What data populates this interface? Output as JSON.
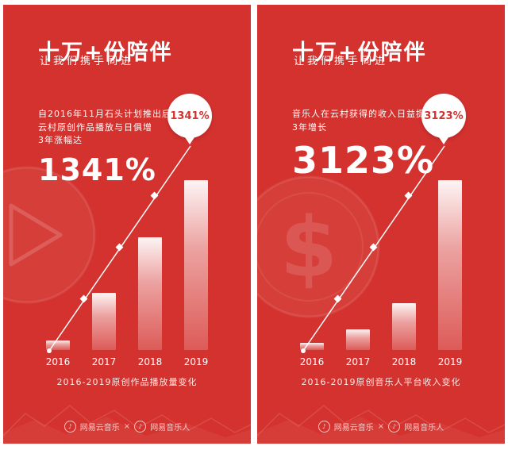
{
  "colors": {
    "panel_red": "#d4322e",
    "balloon_bg": "#ffffff",
    "balloon_text": "#d4322e",
    "text_white": "#ffffff"
  },
  "icons": {
    "logo_glyph": "♪"
  },
  "panels": [
    {
      "header": {
        "title": "十万+份陪伴",
        "subtitle": "让我们携手同进"
      },
      "description_lines": [
        "自2016年11月石头计划推出后",
        "云村原创作品播放与日俱增",
        "3年涨幅达"
      ],
      "big_number": "1341%",
      "balloon_label": "1341%",
      "caption": "2016-2019原创作品播放量变化",
      "footer": {
        "left_brand": "网易云音乐",
        "separator": "×",
        "right_brand": "网易音乐人"
      }
    },
    {
      "header": {
        "title": "十万+份陪伴",
        "subtitle": "让我们携手同进"
      },
      "description_lines": [
        "音乐人在云村获得的收入日益提升",
        "3年增长"
      ],
      "big_number": "3123%",
      "balloon_label": "3123%",
      "caption": "2016-2019原创音乐人平台收入变化",
      "footer": {
        "left_brand": "网易云音乐",
        "separator": "×",
        "right_brand": "网易音乐人"
      }
    }
  ],
  "chart_data": [
    {
      "type": "bar",
      "title": "2016-2019原创作品播放量变化",
      "categories": [
        "2016",
        "2017",
        "2018",
        "2019"
      ],
      "values": [
        5.5,
        33,
        65,
        98
      ],
      "ylim": [
        0,
        100
      ],
      "value_scale": "relative bar height %, no numeric axis shown",
      "annotation": "1341%",
      "trend_line": true,
      "legend": false
    },
    {
      "type": "bar",
      "title": "2016-2019原创音乐人平台收入变化",
      "categories": [
        "2016",
        "2017",
        "2018",
        "2019"
      ],
      "values": [
        4,
        12,
        27,
        98
      ],
      "ylim": [
        0,
        100
      ],
      "value_scale": "relative bar height %, no numeric axis shown",
      "annotation": "3123%",
      "trend_line": true,
      "legend": false
    }
  ]
}
